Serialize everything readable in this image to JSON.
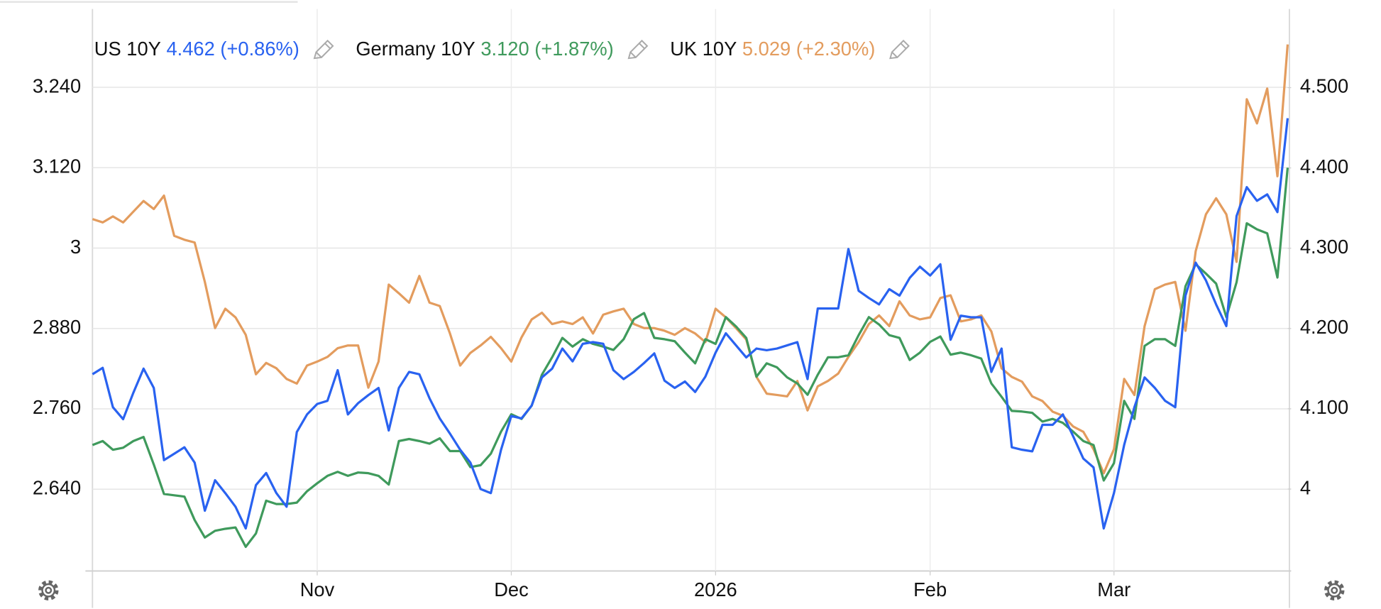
{
  "chart_data": {
    "type": "line",
    "categories": [
      null,
      null,
      null,
      null,
      null,
      null,
      null,
      null,
      null,
      null,
      null,
      null,
      null,
      null,
      null,
      null,
      null,
      null,
      null,
      null,
      null,
      null,
      "Nov",
      null,
      null,
      null,
      null,
      null,
      null,
      null,
      null,
      null,
      null,
      null,
      null,
      null,
      null,
      null,
      null,
      null,
      null,
      "Dec",
      null,
      null,
      null,
      null,
      null,
      null,
      null,
      null,
      null,
      null,
      null,
      null,
      null,
      null,
      null,
      null,
      null,
      null,
      null,
      "2026",
      null,
      null,
      null,
      null,
      null,
      null,
      null,
      null,
      null,
      null,
      null,
      null,
      null,
      null,
      null,
      null,
      null,
      null,
      null,
      null,
      "Feb",
      null,
      null,
      null,
      null,
      null,
      null,
      null,
      null,
      null,
      null,
      null,
      null,
      null,
      null,
      null,
      null,
      null,
      "Mar",
      null,
      null,
      null,
      null,
      null,
      null,
      null,
      null,
      null,
      null,
      null,
      null,
      null,
      null,
      null,
      null,
      null
    ],
    "series": [
      {
        "name": "US 10Y",
        "last": "4.462",
        "change": "(+0.86%)",
        "color": "#2962f0",
        "axis": "y2",
        "values": [
          4.143,
          4.151,
          4.102,
          4.087,
          4.12,
          4.15,
          4.126,
          4.036,
          4.044,
          4.052,
          4.033,
          3.973,
          4.011,
          3.995,
          3.978,
          3.951,
          4.005,
          4.02,
          3.995,
          3.978,
          4.071,
          4.093,
          4.106,
          4.11,
          4.148,
          4.093,
          4.107,
          4.117,
          4.126,
          4.073,
          4.126,
          4.146,
          4.143,
          4.113,
          4.088,
          4.069,
          4.049,
          4.033,
          4.0,
          3.995,
          4.049,
          4.091,
          4.088,
          4.104,
          4.139,
          4.15,
          4.175,
          4.159,
          4.181,
          4.183,
          4.181,
          4.148,
          4.137,
          4.146,
          4.157,
          4.169,
          4.135,
          4.126,
          4.134,
          4.121,
          4.14,
          4.17,
          4.194,
          4.179,
          4.164,
          4.175,
          4.173,
          4.175,
          4.179,
          4.183,
          4.137,
          4.225,
          4.225,
          4.225,
          4.299,
          4.247,
          4.238,
          4.23,
          4.249,
          4.241,
          4.263,
          4.277,
          4.266,
          4.28,
          4.186,
          4.216,
          4.214,
          4.214,
          4.146,
          4.175,
          4.052,
          4.049,
          4.047,
          4.08,
          4.08,
          4.093,
          4.066,
          4.038,
          4.027,
          3.951,
          3.995,
          4.055,
          4.102,
          4.139,
          4.126,
          4.11,
          4.102,
          4.241,
          4.282,
          4.26,
          4.23,
          4.203,
          4.34,
          4.376,
          4.359,
          4.367,
          4.345,
          4.462
        ]
      },
      {
        "name": "Germany 10Y",
        "last": "3.120",
        "change": "(+1.87%)",
        "color": "#3f9a5c",
        "axis": "y",
        "values": [
          2.706,
          2.712,
          2.699,
          2.702,
          2.712,
          2.718,
          2.677,
          2.633,
          2.631,
          2.629,
          2.594,
          2.568,
          2.578,
          2.581,
          2.583,
          2.554,
          2.574,
          2.623,
          2.618,
          2.618,
          2.62,
          2.637,
          2.649,
          2.66,
          2.666,
          2.66,
          2.665,
          2.664,
          2.66,
          2.647,
          2.712,
          2.715,
          2.712,
          2.708,
          2.716,
          2.697,
          2.697,
          2.673,
          2.676,
          2.693,
          2.726,
          2.752,
          2.745,
          2.765,
          2.811,
          2.837,
          2.866,
          2.853,
          2.864,
          2.857,
          2.853,
          2.848,
          2.864,
          2.894,
          2.903,
          2.866,
          2.864,
          2.861,
          2.844,
          2.828,
          2.864,
          2.857,
          2.897,
          2.883,
          2.866,
          2.808,
          2.828,
          2.822,
          2.807,
          2.798,
          2.781,
          2.811,
          2.837,
          2.837,
          2.84,
          2.87,
          2.897,
          2.886,
          2.87,
          2.866,
          2.833,
          2.844,
          2.86,
          2.868,
          2.841,
          2.844,
          2.84,
          2.835,
          2.798,
          2.778,
          2.757,
          2.756,
          2.754,
          2.741,
          2.745,
          2.739,
          2.726,
          2.712,
          2.706,
          2.653,
          2.679,
          2.772,
          2.745,
          2.854,
          2.864,
          2.864,
          2.854,
          2.943,
          2.976,
          2.962,
          2.947,
          2.897,
          2.949,
          3.037,
          3.028,
          3.022,
          2.956,
          3.12
        ]
      },
      {
        "name": "UK 10Y",
        "last": "5.029",
        "change": "(+2.30%)",
        "color": "#e39c5e",
        "axis": "y3",
        "values": [
          4.768,
          4.763,
          4.772,
          4.763,
          4.779,
          4.795,
          4.783,
          4.803,
          4.743,
          4.737,
          4.733,
          4.674,
          4.605,
          4.634,
          4.621,
          4.595,
          4.536,
          4.553,
          4.545,
          4.529,
          4.522,
          4.549,
          4.555,
          4.562,
          4.575,
          4.579,
          4.579,
          4.516,
          4.555,
          4.67,
          4.657,
          4.643,
          4.683,
          4.643,
          4.638,
          4.597,
          4.549,
          4.568,
          4.579,
          4.592,
          4.575,
          4.555,
          4.591,
          4.618,
          4.628,
          4.611,
          4.615,
          4.611,
          4.621,
          4.597,
          4.625,
          4.63,
          4.634,
          4.611,
          4.605,
          4.605,
          4.601,
          4.595,
          4.605,
          4.597,
          4.584,
          4.634,
          4.621,
          4.605,
          4.588,
          4.532,
          4.507,
          4.505,
          4.503,
          4.526,
          4.482,
          4.518,
          4.526,
          4.537,
          4.562,
          4.584,
          4.611,
          4.624,
          4.608,
          4.645,
          4.624,
          4.618,
          4.621,
          4.65,
          4.654,
          4.615,
          4.618,
          4.624,
          4.6,
          4.545,
          4.532,
          4.525,
          4.503,
          4.496,
          4.48,
          4.474,
          4.458,
          4.45,
          4.424,
          4.388,
          4.424,
          4.529,
          4.505,
          4.608,
          4.663,
          4.67,
          4.674,
          4.601,
          4.72,
          4.775,
          4.799,
          4.775,
          4.704,
          4.947,
          4.911,
          4.963,
          4.832,
          5.029
        ]
      }
    ],
    "ylim": [
      2.518,
      3.357
    ],
    "yticks": [
      {
        "value": 2.64,
        "label": "2.640"
      },
      {
        "value": 2.76,
        "label": "2.760"
      },
      {
        "value": 2.88,
        "label": "2.880"
      },
      3,
      {
        "value": 3.12,
        "label": "3.120"
      },
      {
        "value": 3.24,
        "label": "3.240"
      }
    ],
    "y2lim": [
      3.898,
      4.598
    ],
    "y2ticks": [
      4,
      {
        "value": 4.1,
        "label": "4.100"
      },
      {
        "value": 4.2,
        "label": "4.200"
      },
      {
        "value": 4.3,
        "label": "4.300"
      },
      {
        "value": 4.4,
        "label": "4.400"
      },
      {
        "value": 4.5,
        "label": "4.500"
      }
    ],
    "y3lim": [
      4.242,
      5.082
    ],
    "grid": true
  }
}
